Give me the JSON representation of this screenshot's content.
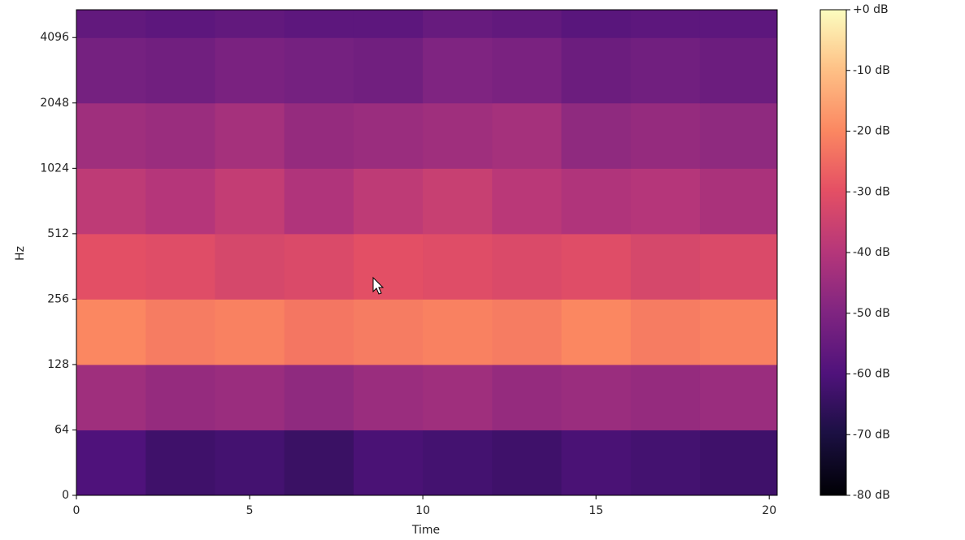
{
  "chart_data": {
    "type": "spectrogram",
    "x_label": "Time",
    "y_label": "Hz",
    "x_edges": [
      0,
      2,
      4,
      6,
      8,
      10,
      12,
      14,
      16,
      18,
      20.23
    ],
    "y_edges": [
      0,
      64,
      128,
      256,
      512,
      1024,
      2048,
      4096,
      5500
    ],
    "values": [
      [
        -60,
        -63,
        -62,
        -64,
        -61,
        -62,
        -63,
        -61,
        -62,
        -63
      ],
      [
        -44,
        -46,
        -45,
        -47,
        -45,
        -44,
        -46,
        -45,
        -46,
        -45
      ],
      [
        -20,
        -22,
        -21,
        -23,
        -22,
        -21,
        -22,
        -20,
        -22,
        -21
      ],
      [
        -30,
        -31,
        -33,
        -32,
        -30,
        -31,
        -32,
        -31,
        -33,
        -32
      ],
      [
        -38,
        -40,
        -37,
        -41,
        -38,
        -36,
        -39,
        -41,
        -40,
        -42
      ],
      [
        -44,
        -45,
        -43,
        -46,
        -45,
        -44,
        -43,
        -47,
        -46,
        -47
      ],
      [
        -52,
        -53,
        -51,
        -52,
        -53,
        -50,
        -51,
        -54,
        -53,
        -54
      ],
      [
        -56,
        -57,
        -56,
        -57,
        -57,
        -55,
        -56,
        -58,
        -57,
        -57
      ]
    ],
    "xlim": [
      0,
      20.23
    ],
    "xticks": [
      0,
      5,
      10,
      15,
      20
    ],
    "ylim": [
      0,
      5500
    ],
    "yscale": "symlog",
    "linthresh": 64,
    "yticks": [
      0,
      64,
      128,
      256,
      512,
      1024,
      2048,
      4096
    ],
    "colormap": "magma",
    "clim": [
      -80,
      0
    ],
    "cticks": [
      {
        "value": 0,
        "label": "+0 dB"
      },
      {
        "value": -10,
        "label": "-10 dB"
      },
      {
        "value": -20,
        "label": "-20 dB"
      },
      {
        "value": -30,
        "label": "-30 dB"
      },
      {
        "value": -40,
        "label": "-40 dB"
      },
      {
        "value": -50,
        "label": "-50 dB"
      },
      {
        "value": -60,
        "label": "-60 dB"
      },
      {
        "value": -70,
        "label": "-70 dB"
      },
      {
        "value": -80,
        "label": "-80 dB"
      }
    ]
  }
}
